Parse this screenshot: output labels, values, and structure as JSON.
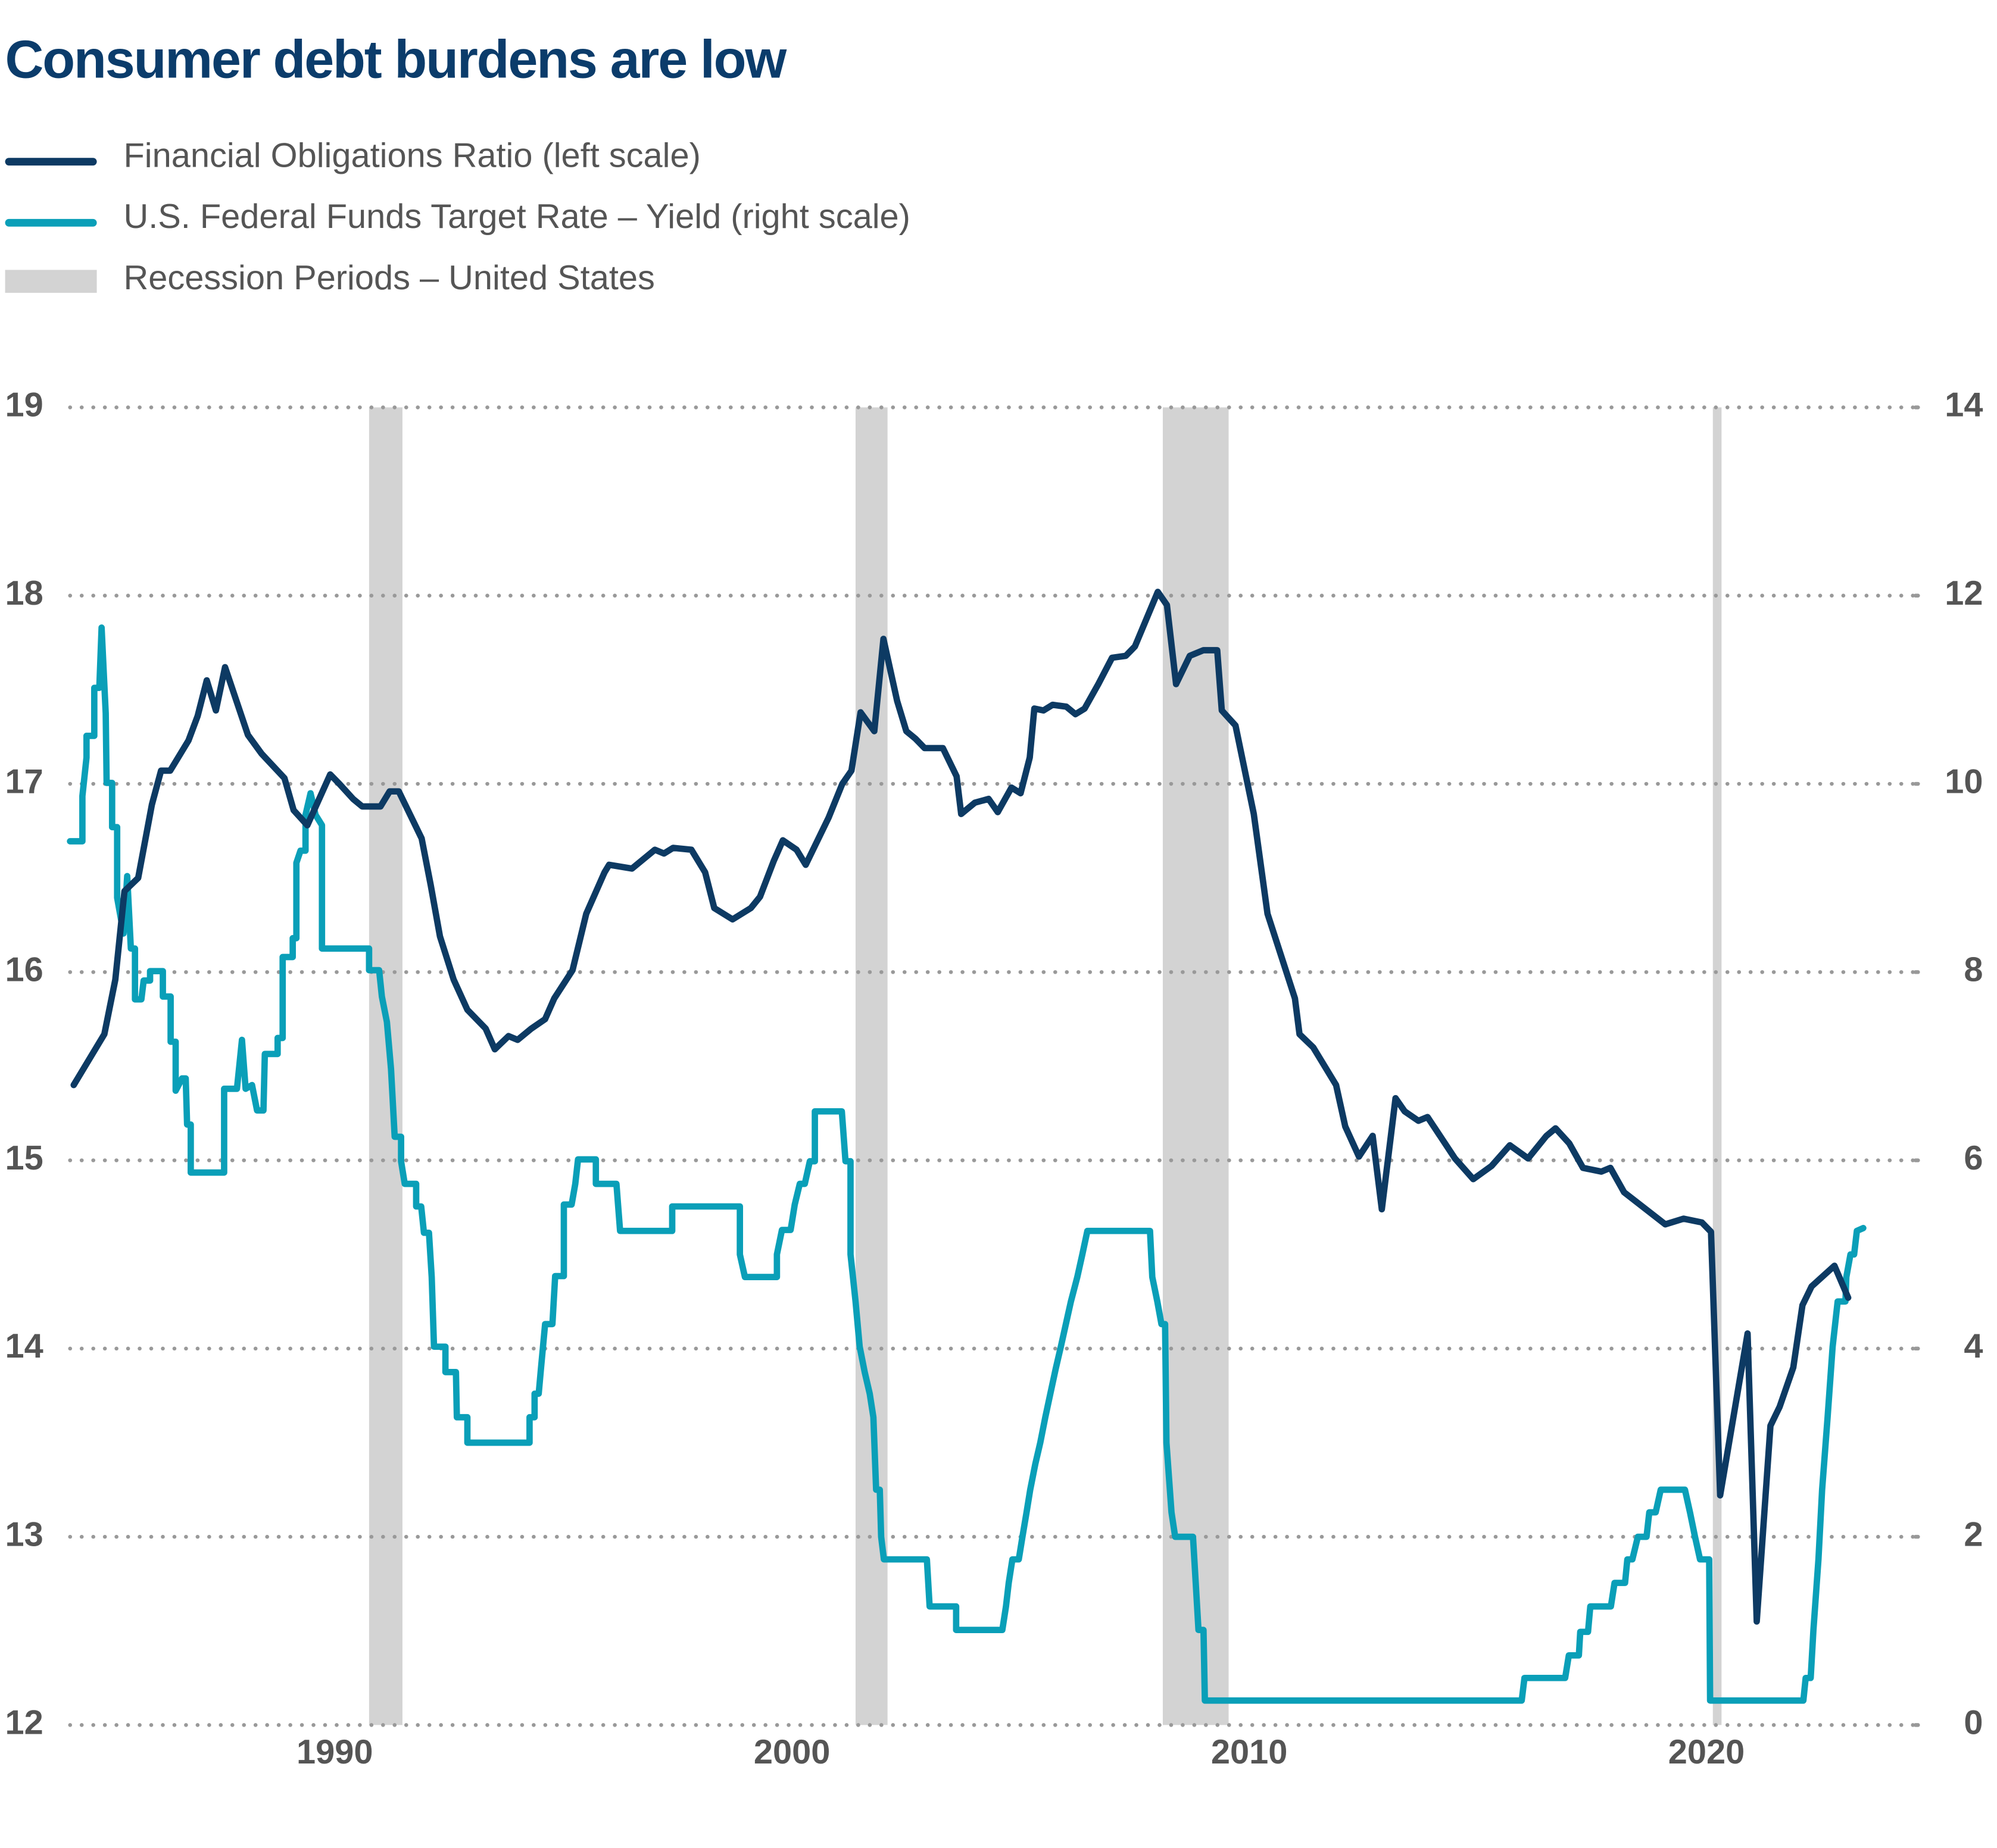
{
  "chart_data": {
    "type": "line",
    "title": "Consumer debt burdens are low",
    "xlim": [
      1984.21,
      2024.6
    ],
    "xticks": [
      1990,
      2000,
      2010,
      2020
    ],
    "ylim": [
      12,
      19
    ],
    "yticks": [
      12,
      13,
      14,
      15,
      16,
      17,
      18,
      19
    ],
    "y2lim": [
      0,
      14
    ],
    "y2ticks": [
      0,
      2,
      4,
      6,
      8,
      10,
      12,
      14
    ],
    "grid": true,
    "recessions": {
      "name": "Recession Periods – United States",
      "color": "#d3d3d3",
      "ranges": [
        [
          1990.75,
          1991.48
        ],
        [
          2001.39,
          2002.09
        ],
        [
          2008.11,
          2009.55
        ],
        [
          2020.14,
          2020.33
        ]
      ]
    },
    "series": [
      {
        "name": "Financial Obligations Ratio (left scale)",
        "color": "#0d3a63",
        "axis": "y",
        "x": [
          1984.29,
          1984.96,
          1985.2,
          1985.4,
          1985.7,
          1986.0,
          1986.2,
          1986.4,
          1986.8,
          1987.0,
          1987.2,
          1987.4,
          1987.6,
          1988.1,
          1988.4,
          1988.9,
          1989.1,
          1989.4,
          1989.9,
          1990.1,
          1990.4,
          1990.6,
          1991.0,
          1991.2,
          1991.4,
          1991.6,
          1991.9,
          1992.1,
          1992.3,
          1992.6,
          1992.9,
          1993.3,
          1993.5,
          1993.8,
          1994.0,
          1994.3,
          1994.6,
          1994.8,
          1995.2,
          1995.5,
          1995.9,
          1996.0,
          1996.5,
          1997.0,
          1997.2,
          1997.4,
          1997.8,
          1998.1,
          1998.3,
          1998.7,
          1999.1,
          1999.3,
          1999.6,
          1999.8,
          2000.1,
          2000.3,
          2000.8,
          2001.1,
          2001.3,
          2001.5,
          2001.8,
          2002.0,
          2002.3,
          2002.5,
          2002.7,
          2002.9,
          2003.3,
          2003.6,
          2003.7,
          2004.0,
          2004.3,
          2004.5,
          2004.8,
          2005.0,
          2005.2,
          2005.3,
          2005.5,
          2005.7,
          2006.0,
          2006.2,
          2006.4,
          2006.7,
          2007.0,
          2007.3,
          2007.5,
          2008.0,
          2008.2,
          2008.4,
          2008.7,
          2009.0,
          2009.3,
          2009.4,
          2009.7,
          2010.1,
          2010.4,
          2011.0,
          2011.1,
          2011.4,
          2011.9,
          2012.1,
          2012.4,
          2012.7,
          2012.9,
          2013.2,
          2013.4,
          2013.7,
          2013.9,
          2014.5,
          2014.9,
          2015.3,
          2015.7,
          2016.1,
          2016.5,
          2016.7,
          2017.0,
          2017.3,
          2017.7,
          2017.9,
          2018.2,
          2019.1,
          2019.5,
          2019.9,
          2020.1,
          2020.3,
          2020.9,
          2021.1,
          2021.4,
          2021.6,
          2021.9,
          2022.1,
          2022.3,
          2022.8,
          2023.1
        ],
        "values": [
          15.4,
          15.67,
          15.96,
          16.43,
          16.5,
          16.89,
          17.07,
          17.07,
          17.23,
          17.36,
          17.55,
          17.39,
          17.62,
          17.26,
          17.16,
          17.03,
          16.86,
          16.78,
          17.05,
          17.0,
          16.92,
          16.88,
          16.88,
          16.96,
          16.96,
          16.86,
          16.71,
          16.46,
          16.19,
          15.96,
          15.8,
          15.7,
          15.59,
          15.66,
          15.64,
          15.7,
          15.75,
          15.86,
          16.01,
          16.31,
          16.53,
          16.57,
          16.55,
          16.65,
          16.63,
          16.66,
          16.65,
          16.53,
          16.34,
          16.28,
          16.34,
          16.4,
          16.59,
          16.7,
          16.65,
          16.57,
          16.82,
          17.0,
          17.07,
          17.38,
          17.28,
          17.77,
          17.44,
          17.28,
          17.24,
          17.19,
          17.19,
          17.04,
          16.84,
          16.9,
          16.92,
          16.85,
          16.98,
          16.95,
          17.14,
          17.4,
          17.39,
          17.42,
          17.41,
          17.37,
          17.4,
          17.53,
          17.67,
          17.68,
          17.73,
          18.02,
          17.95,
          17.53,
          17.68,
          17.71,
          17.71,
          17.39,
          17.31,
          16.84,
          16.31,
          15.86,
          15.67,
          15.6,
          15.4,
          15.18,
          15.02,
          15.13,
          14.74,
          15.33,
          15.26,
          15.21,
          15.23,
          15.01,
          14.9,
          14.97,
          15.08,
          15.01,
          15.13,
          15.17,
          15.09,
          14.96,
          14.94,
          14.96,
          14.83,
          14.66,
          14.69,
          14.67,
          14.62,
          13.22,
          14.08,
          12.55,
          13.59,
          13.69,
          13.9,
          14.23,
          14.33,
          14.44,
          14.27
        ]
      },
      {
        "name": "U.S. Federal Funds Target Rate – Yield (right scale)",
        "color": "#0a9fb8",
        "axis": "y2",
        "x": [
          1984.21,
          1984.48,
          1984.48,
          1984.57,
          1984.57,
          1984.74,
          1984.74,
          1984.85,
          1984.9,
          1984.99,
          1985.01,
          1985.13,
          1985.13,
          1985.24,
          1985.24,
          1985.38,
          1985.46,
          1985.54,
          1985.63,
          1985.63,
          1985.77,
          1985.82,
          1985.96,
          1985.96,
          1986.24,
          1986.24,
          1986.41,
          1986.41,
          1986.52,
          1986.52,
          1986.66,
          1986.74,
          1986.77,
          1986.85,
          1986.85,
          1987.58,
          1987.58,
          1987.86,
          1987.97,
          1988.05,
          1988.19,
          1988.3,
          1988.44,
          1988.47,
          1988.75,
          1988.75,
          1988.86,
          1988.86,
          1989.08,
          1989.08,
          1989.16,
          1989.16,
          1989.25,
          1989.36,
          1989.36,
          1989.47,
          1989.58,
          1989.72,
          1989.72,
          1990.75,
          1990.75,
          1990.97,
          1991.03,
          1991.14,
          1991.23,
          1991.31,
          1991.45,
          1991.45,
          1991.53,
          1991.78,
          1991.78,
          1991.89,
          1991.95,
          1992.06,
          1992.12,
          1992.17,
          1992.42,
          1992.42,
          1992.65,
          1992.67,
          1992.9,
          1992.9,
          1994.26,
          1994.26,
          1994.37,
          1994.37,
          1994.46,
          1994.51,
          1994.6,
          1994.76,
          1994.82,
          1995.01,
          1995.01,
          1995.18,
          1995.26,
          1995.32,
          1995.71,
          1995.71,
          1996.16,
          1996.24,
          1997.38,
          1997.38,
          1998.86,
          1998.86,
          1998.97,
          1999.67,
          1999.67,
          1999.78,
          1999.97,
          2000.06,
          2000.17,
          2000.28,
          2000.39,
          2000.5,
          2000.5,
          2001.09,
          2001.17,
          2001.28,
          2001.28,
          2001.39,
          2001.48,
          2001.59,
          2001.7,
          2001.78,
          2001.84,
          2001.92,
          2001.95,
          2002.01,
          2002.95,
          2003.01,
          2003.59,
          2003.59,
          2004.6,
          2004.68,
          2004.74,
          2004.82,
          2004.96,
          2005.04,
          2005.13,
          2005.21,
          2005.32,
          2005.43,
          2005.54,
          2005.65,
          2005.77,
          2005.88,
          2005.99,
          2006.1,
          2006.24,
          2006.35,
          2006.46,
          2007.83,
          2007.88,
          2007.99,
          2008.08,
          2008.16,
          2008.19,
          2008.3,
          2008.38,
          2008.77,
          2008.83,
          2008.89,
          2009.0,
          2009.03,
          2015.96,
          2016.02,
          2016.91,
          2016.99,
          2017.21,
          2017.24,
          2017.41,
          2017.46,
          2017.91,
          2017.99,
          2018.22,
          2018.27,
          2018.38,
          2018.5,
          2018.69,
          2018.75,
          2018.89,
          2019.0,
          2019.53,
          2019.64,
          2019.75,
          2019.86,
          2020.06,
          2020.08,
          2022.12,
          2022.17,
          2022.28,
          2022.34,
          2022.45,
          2022.53,
          2022.65,
          2022.76,
          2022.87,
          2023.04,
          2023.06,
          2023.15,
          2023.23,
          2023.29,
          2023.43
        ],
        "values": [
          9.39,
          9.39,
          9.87,
          10.28,
          10.51,
          10.51,
          11.02,
          11.02,
          11.66,
          10.75,
          10.01,
          10.01,
          9.54,
          9.54,
          8.79,
          8.41,
          9.02,
          8.25,
          8.25,
          7.71,
          7.71,
          7.91,
          7.91,
          8.01,
          8.01,
          7.74,
          7.74,
          7.26,
          7.26,
          6.74,
          6.87,
          6.87,
          6.38,
          6.38,
          5.87,
          5.87,
          6.76,
          6.76,
          7.28,
          6.76,
          6.8,
          6.53,
          6.53,
          7.13,
          7.13,
          7.3,
          7.3,
          8.16,
          8.16,
          8.36,
          8.36,
          9.16,
          9.29,
          9.29,
          9.67,
          9.9,
          9.67,
          9.56,
          8.25,
          8.25,
          8.02,
          8.02,
          7.74,
          7.47,
          6.97,
          6.25,
          6.25,
          5.99,
          5.75,
          5.75,
          5.51,
          5.51,
          5.23,
          5.23,
          4.76,
          4.02,
          4.02,
          3.75,
          3.75,
          3.27,
          3.27,
          3.0,
          3.0,
          3.27,
          3.27,
          3.52,
          3.52,
          3.79,
          4.26,
          4.26,
          4.77,
          4.77,
          5.53,
          5.53,
          5.75,
          6.01,
          6.01,
          5.75,
          5.75,
          5.25,
          5.25,
          5.51,
          5.51,
          5.0,
          4.76,
          4.76,
          5.0,
          5.26,
          5.26,
          5.53,
          5.75,
          5.75,
          5.99,
          5.99,
          6.52,
          6.52,
          5.99,
          5.99,
          5.0,
          4.5,
          4.02,
          3.75,
          3.52,
          3.27,
          2.5,
          2.5,
          2.0,
          1.76,
          1.76,
          1.26,
          1.26,
          1.01,
          1.01,
          1.26,
          1.51,
          1.76,
          1.76,
          2.0,
          2.26,
          2.5,
          2.77,
          3.0,
          3.27,
          3.52,
          3.79,
          4.02,
          4.26,
          4.5,
          4.76,
          5.0,
          5.25,
          5.25,
          4.76,
          4.5,
          4.26,
          4.26,
          3.0,
          2.26,
          2.0,
          2.0,
          1.51,
          1.01,
          1.01,
          0.26,
          0.26,
          0.5,
          0.5,
          0.74,
          0.74,
          0.99,
          0.99,
          1.26,
          1.26,
          1.51,
          1.51,
          1.76,
          1.76,
          2.0,
          2.0,
          2.26,
          2.26,
          2.5,
          2.5,
          2.26,
          2.0,
          1.76,
          1.76,
          0.26,
          0.26,
          0.5,
          0.5,
          1.01,
          1.76,
          2.5,
          3.27,
          4.02,
          4.5,
          4.5,
          4.76,
          5.0,
          5.0,
          5.25,
          5.28
        ]
      }
    ]
  }
}
